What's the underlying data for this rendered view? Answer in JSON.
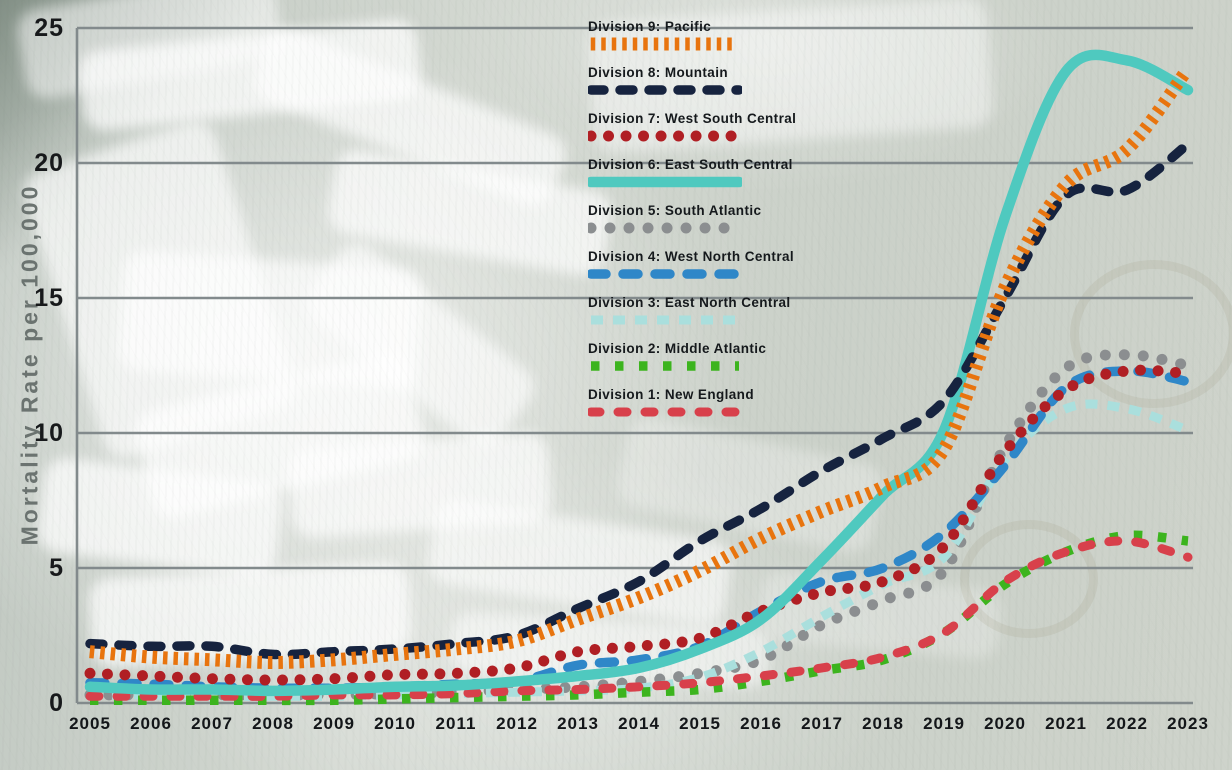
{
  "chart_data": {
    "type": "line",
    "ylabel": "Mortality Rate per 100,000",
    "ylim": [
      0,
      25
    ],
    "yticks": [
      0,
      5,
      10,
      15,
      20,
      25
    ],
    "grid": "horizontal",
    "legend_position": "top-center",
    "x": [
      2005,
      2006,
      2007,
      2008,
      2009,
      2010,
      2011,
      2012,
      2013,
      2014,
      2015,
      2016,
      2017,
      2018,
      2019,
      2020,
      2021,
      2022,
      2023
    ],
    "series": [
      {
        "name": "Division 9: Pacific",
        "color": "#e8740e",
        "line_style": "perpendicular-ticks",
        "values": [
          1.9,
          1.7,
          1.6,
          1.5,
          1.6,
          1.8,
          2.0,
          2.3,
          3.1,
          3.9,
          4.9,
          6.1,
          7.1,
          8.0,
          9.4,
          15.4,
          19.2,
          20.5,
          23.5
        ]
      },
      {
        "name": "Division 8: Mountain",
        "color": "#16233f",
        "line_style": "rounded-dash-lg",
        "values": [
          2.2,
          2.1,
          2.1,
          1.8,
          1.9,
          2.0,
          2.2,
          2.5,
          3.5,
          4.5,
          6.0,
          7.2,
          8.6,
          9.8,
          11.2,
          15.0,
          18.8,
          19.0,
          20.7
        ]
      },
      {
        "name": "Division 7: West South Central",
        "color": "#b01f24",
        "line_style": "round-dot",
        "values": [
          1.1,
          1.0,
          0.9,
          0.85,
          0.9,
          1.05,
          1.1,
          1.3,
          1.9,
          2.1,
          2.4,
          3.4,
          4.1,
          4.5,
          5.8,
          9.3,
          11.6,
          12.3,
          12.2
        ]
      },
      {
        "name": "Division 6: East South Central",
        "color": "#4fc9bf",
        "line_style": "solid",
        "values": [
          0.6,
          0.5,
          0.5,
          0.45,
          0.5,
          0.6,
          0.65,
          0.8,
          1.0,
          1.3,
          2.0,
          3.1,
          5.3,
          7.7,
          10.1,
          18.0,
          23.4,
          23.8,
          22.7
        ]
      },
      {
        "name": "Division 5: South Atlantic",
        "color": "#8b8e90",
        "line_style": "round-dot-sparse",
        "values": [
          0.3,
          0.3,
          0.3,
          0.3,
          0.3,
          0.35,
          0.4,
          0.5,
          0.6,
          0.8,
          1.1,
          1.6,
          2.9,
          3.8,
          4.9,
          9.5,
          12.4,
          12.9,
          12.5
        ]
      },
      {
        "name": "Division 4: West North Central",
        "color": "#2f87c8",
        "line_style": "rounded-dash-md",
        "values": [
          0.75,
          0.7,
          0.6,
          0.55,
          0.55,
          0.6,
          0.7,
          0.8,
          1.4,
          1.6,
          2.1,
          3.4,
          4.5,
          5.0,
          6.3,
          8.8,
          11.7,
          12.3,
          11.9
        ]
      },
      {
        "name": "Division 3: East North Central",
        "color": "#aadfdd",
        "line_style": "square-dash",
        "values": [
          0.3,
          0.3,
          0.25,
          0.25,
          0.25,
          0.3,
          0.35,
          0.4,
          0.45,
          0.55,
          0.95,
          1.9,
          3.2,
          4.4,
          5.4,
          9.0,
          10.9,
          10.9,
          10.1
        ]
      },
      {
        "name": "Division 2: Middle Atlantic",
        "color": "#3cb41e",
        "line_style": "square-dot",
        "values": [
          0.1,
          0.1,
          0.1,
          0.1,
          0.1,
          0.15,
          0.2,
          0.25,
          0.3,
          0.4,
          0.5,
          0.8,
          1.2,
          1.6,
          2.6,
          4.4,
          5.6,
          6.2,
          6.0
        ]
      },
      {
        "name": "Division 1: New England",
        "color": "#d8404b",
        "line_style": "rounded-dash-sm",
        "values": [
          0.25,
          0.25,
          0.25,
          0.25,
          0.3,
          0.3,
          0.35,
          0.45,
          0.5,
          0.6,
          0.75,
          1.0,
          1.3,
          1.7,
          2.6,
          4.5,
          5.6,
          6.0,
          5.4
        ]
      }
    ]
  }
}
